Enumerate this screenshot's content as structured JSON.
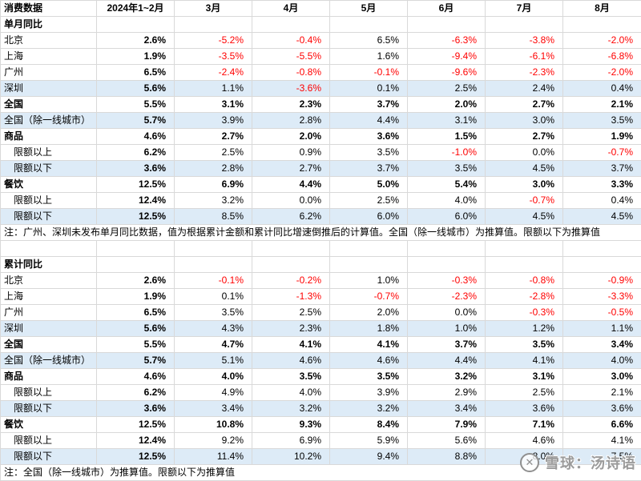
{
  "chart_data": [
    {
      "type": "table",
      "title": "单月同比",
      "columns": [
        "消费数据",
        "2024年1~2月",
        "3月",
        "4月",
        "5月",
        "6月",
        "7月",
        "8月"
      ],
      "rows": [
        {
          "label": "北京",
          "indent": false,
          "bold": false,
          "highlight": false,
          "values": [
            "2.6%",
            "-5.2%",
            "-0.4%",
            "6.5%",
            "-6.3%",
            "-3.8%",
            "-2.0%"
          ]
        },
        {
          "label": "上海",
          "indent": false,
          "bold": false,
          "highlight": false,
          "values": [
            "1.9%",
            "-3.5%",
            "-5.5%",
            "1.6%",
            "-9.4%",
            "-6.1%",
            "-6.8%"
          ]
        },
        {
          "label": "广州",
          "indent": false,
          "bold": false,
          "highlight": false,
          "values": [
            "6.5%",
            "-2.4%",
            "-0.8%",
            "-0.1%",
            "-9.6%",
            "-2.3%",
            "-2.0%"
          ]
        },
        {
          "label": "深圳",
          "indent": false,
          "bold": false,
          "highlight": true,
          "values": [
            "5.6%",
            "1.1%",
            "-3.6%",
            "0.1%",
            "2.5%",
            "2.4%",
            "0.4%"
          ]
        },
        {
          "label": "全国",
          "indent": false,
          "bold": true,
          "highlight": false,
          "values": [
            "5.5%",
            "3.1%",
            "2.3%",
            "3.7%",
            "2.0%",
            "2.7%",
            "2.1%"
          ]
        },
        {
          "label": "全国（除一线城市）",
          "indent": false,
          "bold": false,
          "highlight": true,
          "values": [
            "5.7%",
            "3.9%",
            "2.8%",
            "4.4%",
            "3.1%",
            "3.0%",
            "3.5%"
          ]
        },
        {
          "label": "商品",
          "indent": false,
          "bold": true,
          "highlight": false,
          "values": [
            "4.6%",
            "2.7%",
            "2.0%",
            "3.6%",
            "1.5%",
            "2.7%",
            "1.9%"
          ]
        },
        {
          "label": "限额以上",
          "indent": true,
          "bold": false,
          "highlight": false,
          "values": [
            "6.2%",
            "2.5%",
            "0.9%",
            "3.5%",
            "-1.0%",
            "0.0%",
            "-0.7%"
          ]
        },
        {
          "label": "限额以下",
          "indent": true,
          "bold": false,
          "highlight": true,
          "values": [
            "3.6%",
            "2.8%",
            "2.7%",
            "3.7%",
            "3.5%",
            "4.5%",
            "3.7%"
          ]
        },
        {
          "label": "餐饮",
          "indent": false,
          "bold": true,
          "highlight": false,
          "values": [
            "12.5%",
            "6.9%",
            "4.4%",
            "5.0%",
            "5.4%",
            "3.0%",
            "3.3%"
          ]
        },
        {
          "label": "限额以上",
          "indent": true,
          "bold": false,
          "highlight": false,
          "values": [
            "12.4%",
            "3.2%",
            "0.0%",
            "2.5%",
            "4.0%",
            "-0.7%",
            "0.4%"
          ]
        },
        {
          "label": "限额以下",
          "indent": true,
          "bold": false,
          "highlight": true,
          "values": [
            "12.5%",
            "8.5%",
            "6.2%",
            "6.0%",
            "6.0%",
            "4.5%",
            "4.5%"
          ]
        }
      ],
      "note": "注：广州、深圳未发布单月同比数据，值为根据累计金额和累计同比增速倒推后的计算值。全国（除一线城市）为推算值。限额以下为推算值"
    },
    {
      "type": "table",
      "title": "累计同比",
      "columns": [
        "消费数据",
        "2024年1~2月",
        "3月",
        "4月",
        "5月",
        "6月",
        "7月",
        "8月"
      ],
      "rows": [
        {
          "label": "北京",
          "indent": false,
          "bold": false,
          "highlight": false,
          "values": [
            "2.6%",
            "-0.1%",
            "-0.2%",
            "1.0%",
            "-0.3%",
            "-0.8%",
            "-0.9%"
          ]
        },
        {
          "label": "上海",
          "indent": false,
          "bold": false,
          "highlight": false,
          "values": [
            "1.9%",
            "0.1%",
            "-1.3%",
            "-0.7%",
            "-2.3%",
            "-2.8%",
            "-3.3%"
          ]
        },
        {
          "label": "广州",
          "indent": false,
          "bold": false,
          "highlight": false,
          "values": [
            "6.5%",
            "3.5%",
            "2.5%",
            "2.0%",
            "0.0%",
            "-0.3%",
            "-0.5%"
          ]
        },
        {
          "label": "深圳",
          "indent": false,
          "bold": false,
          "highlight": true,
          "values": [
            "5.6%",
            "4.3%",
            "2.3%",
            "1.8%",
            "1.0%",
            "1.2%",
            "1.1%"
          ]
        },
        {
          "label": "全国",
          "indent": false,
          "bold": true,
          "highlight": false,
          "values": [
            "5.5%",
            "4.7%",
            "4.1%",
            "4.1%",
            "3.7%",
            "3.5%",
            "3.4%"
          ]
        },
        {
          "label": "全国（除一线城市）",
          "indent": false,
          "bold": false,
          "highlight": true,
          "values": [
            "5.7%",
            "5.1%",
            "4.6%",
            "4.6%",
            "4.4%",
            "4.1%",
            "4.0%"
          ]
        },
        {
          "label": "商品",
          "indent": false,
          "bold": true,
          "highlight": false,
          "values": [
            "4.6%",
            "4.0%",
            "3.5%",
            "3.5%",
            "3.2%",
            "3.1%",
            "3.0%"
          ]
        },
        {
          "label": "限额以上",
          "indent": true,
          "bold": false,
          "highlight": false,
          "values": [
            "6.2%",
            "4.9%",
            "4.0%",
            "3.9%",
            "2.9%",
            "2.5%",
            "2.1%"
          ]
        },
        {
          "label": "限额以下",
          "indent": true,
          "bold": false,
          "highlight": true,
          "values": [
            "3.6%",
            "3.4%",
            "3.2%",
            "3.2%",
            "3.4%",
            "3.6%",
            "3.6%"
          ]
        },
        {
          "label": "餐饮",
          "indent": false,
          "bold": true,
          "highlight": false,
          "values": [
            "12.5%",
            "10.8%",
            "9.3%",
            "8.4%",
            "7.9%",
            "7.1%",
            "6.6%"
          ]
        },
        {
          "label": "限额以上",
          "indent": true,
          "bold": false,
          "highlight": false,
          "values": [
            "12.4%",
            "9.2%",
            "6.9%",
            "5.9%",
            "5.6%",
            "4.6%",
            "4.1%"
          ]
        },
        {
          "label": "限额以下",
          "indent": true,
          "bold": false,
          "highlight": true,
          "values": [
            "12.5%",
            "11.4%",
            "10.2%",
            "9.4%",
            "8.8%",
            "8.0%",
            "7.5%"
          ]
        }
      ],
      "note": "注：全国（除一线城市）为推算值。限额以下为推算值"
    }
  ],
  "watermark": {
    "icon": "xueqiu-circle-x-icon",
    "icon_glyph": "✕",
    "text": "雪球：汤诗语"
  },
  "colors": {
    "negative": "#FF0000",
    "highlight_row": "#DDEBF7",
    "gridline": "#D9D9D9",
    "watermark_text": "#9B9B9B"
  }
}
